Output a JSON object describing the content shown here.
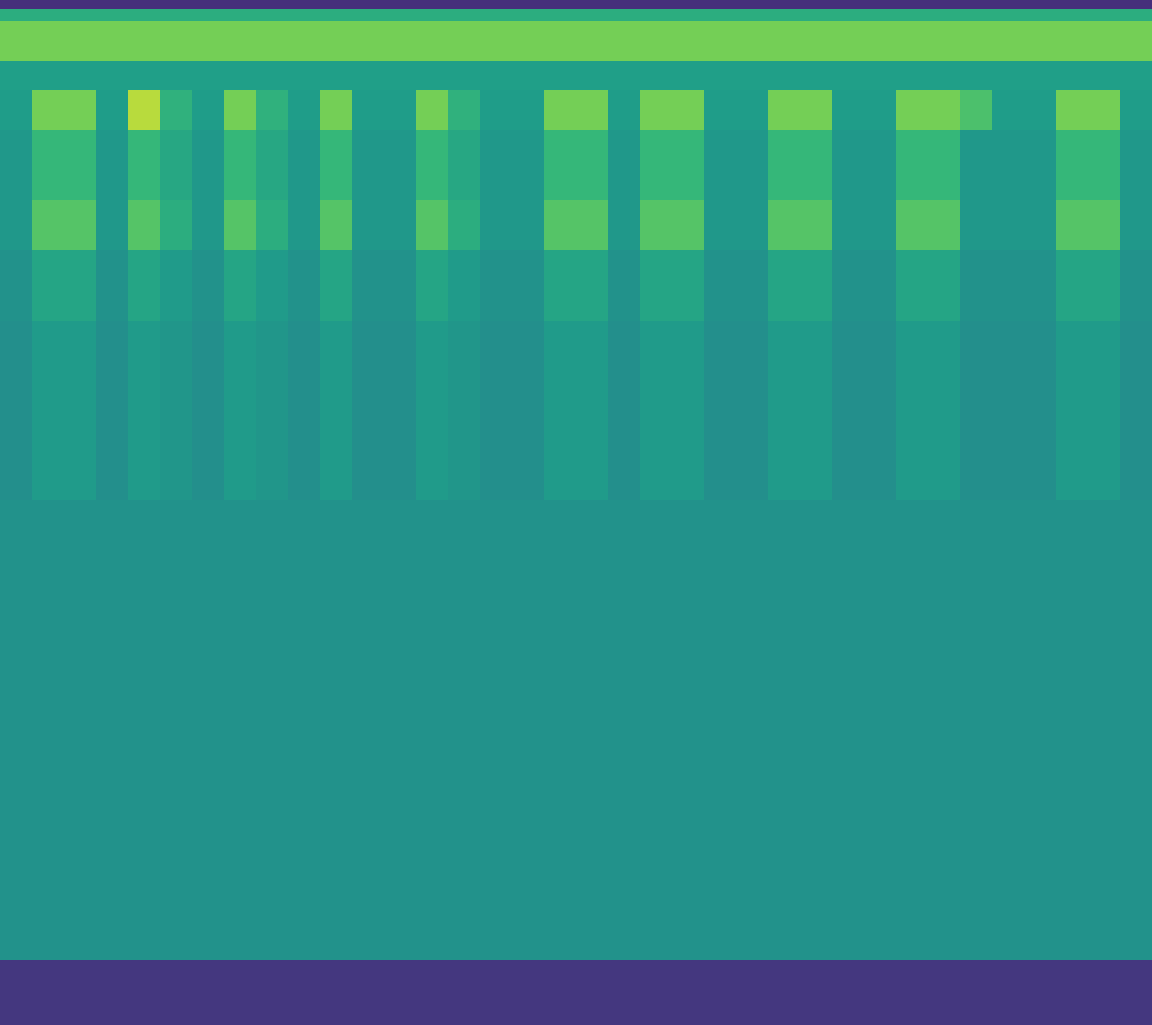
{
  "chart_data": {
    "type": "heatmap",
    "x_edges": [
      0,
      1,
      2,
      3,
      4,
      5,
      6,
      7,
      8,
      9,
      10,
      11,
      12,
      13,
      14,
      15,
      16,
      17,
      18,
      19,
      20,
      21,
      22,
      23,
      24,
      25,
      26,
      27,
      28,
      29,
      30,
      31,
      32,
      33,
      34,
      35,
      36
    ],
    "y_edges": [
      0,
      65,
      525,
      705,
      775,
      825,
      895,
      935,
      965,
      1005,
      1017,
      1025
    ],
    "cells": [
      [
        18,
        18,
        18,
        18,
        18,
        18,
        18,
        18,
        18,
        18,
        18,
        18,
        18,
        18,
        18,
        18,
        18,
        18,
        18,
        18,
        18,
        18,
        18,
        18,
        18,
        18,
        18,
        18,
        18,
        18,
        18,
        18,
        18,
        18,
        18,
        18
      ],
      [
        57,
        57,
        57,
        57,
        57,
        57,
        57,
        57,
        57,
        57,
        57,
        57,
        57,
        57,
        57,
        57,
        57,
        57,
        57,
        57,
        57,
        57,
        57,
        57,
        57,
        57,
        57,
        57,
        57,
        57,
        57,
        57,
        57,
        57,
        57,
        57
      ],
      [
        56,
        61,
        61,
        56,
        61,
        59,
        56,
        61,
        59,
        56,
        61,
        56,
        56,
        61,
        59,
        56,
        56,
        61,
        61,
        56,
        61,
        61,
        56,
        56,
        61,
        61,
        56,
        56,
        61,
        61,
        56,
        56,
        56,
        61,
        61,
        56
      ],
      [
        57,
        66,
        66,
        57,
        66,
        61,
        57,
        66,
        61,
        57,
        66,
        57,
        57,
        66,
        61,
        57,
        57,
        66,
        66,
        57,
        66,
        66,
        57,
        57,
        66,
        66,
        57,
        57,
        66,
        66,
        57,
        57,
        57,
        66,
        66,
        57
      ],
      [
        60,
        82,
        82,
        60,
        82,
        70,
        60,
        82,
        70,
        60,
        82,
        60,
        60,
        82,
        70,
        60,
        60,
        82,
        82,
        60,
        82,
        82,
        60,
        60,
        82,
        82,
        60,
        60,
        82,
        82,
        60,
        60,
        60,
        82,
        82,
        60
      ],
      [
        60,
        75,
        75,
        60,
        75,
        67,
        60,
        75,
        67,
        60,
        75,
        60,
        60,
        75,
        67,
        60,
        60,
        75,
        75,
        60,
        75,
        75,
        60,
        60,
        75,
        75,
        60,
        60,
        75,
        75,
        60,
        60,
        60,
        75,
        75,
        60
      ],
      [
        62,
        88,
        88,
        62,
        94,
        72,
        62,
        88,
        72,
        62,
        88,
        62,
        62,
        88,
        72,
        62,
        62,
        88,
        88,
        62,
        88,
        88,
        62,
        62,
        88,
        88,
        62,
        62,
        88,
        88,
        80,
        62,
        62,
        88,
        88,
        62
      ],
      [
        63,
        63,
        63,
        63,
        63,
        63,
        63,
        63,
        63,
        63,
        63,
        63,
        63,
        63,
        63,
        63,
        63,
        63,
        63,
        63,
        63,
        63,
        63,
        63,
        63,
        63,
        63,
        63,
        63,
        63,
        63,
        63,
        63,
        63,
        63,
        63
      ],
      [
        88,
        88,
        88,
        88,
        88,
        88,
        88,
        88,
        88,
        88,
        88,
        88,
        88,
        88,
        88,
        88,
        88,
        88,
        88,
        88,
        88,
        88,
        88,
        88,
        88,
        88,
        88,
        88,
        88,
        88,
        88,
        88,
        88,
        88,
        88,
        88
      ],
      [
        70,
        70,
        70,
        70,
        70,
        70,
        70,
        70,
        70,
        70,
        70,
        70,
        70,
        70,
        70,
        70,
        70,
        70,
        70,
        70,
        70,
        70,
        70,
        70,
        70,
        70,
        70,
        70,
        70,
        70,
        70,
        70,
        70,
        70,
        70,
        70
      ],
      [
        15,
        15,
        15,
        15,
        15,
        15,
        15,
        15,
        15,
        15,
        15,
        15,
        15,
        15,
        15,
        15,
        15,
        15,
        15,
        15,
        15,
        15,
        15,
        15,
        15,
        15,
        15,
        15,
        15,
        15,
        15,
        15,
        15,
        15,
        15,
        15
      ]
    ],
    "color_range": [
      0,
      100
    ],
    "xlim": [
      0,
      36
    ],
    "ylim": [
      0,
      1025
    ],
    "tick_labels": false,
    "grid": false
  }
}
